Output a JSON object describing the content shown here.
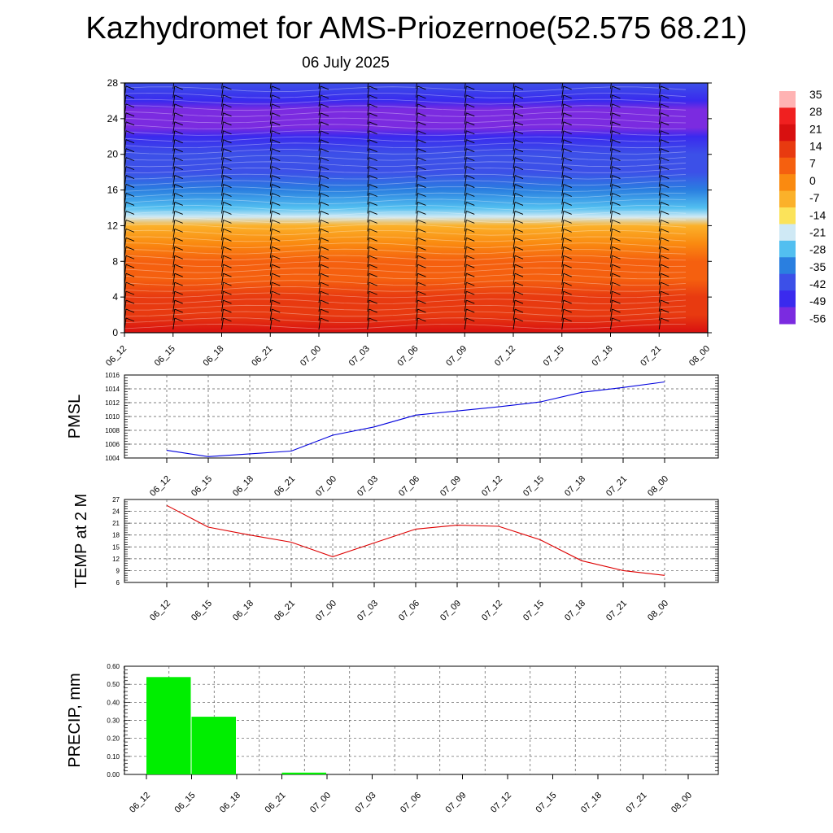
{
  "title": "Kazhydromet for AMS-Priozernoe(52.575 68.21)",
  "subtitle": "06 July 2025",
  "time_ticks": [
    "06_12",
    "06_15",
    "06_18",
    "06_21",
    "07_00",
    "07_03",
    "07_06",
    "07_09",
    "07_12",
    "07_15",
    "07_18",
    "07_21",
    "08_00"
  ],
  "chart_data": [
    {
      "type": "heatmap",
      "title": "",
      "xlabel": "",
      "ylabel": "",
      "x": [
        "06_12",
        "06_15",
        "06_18",
        "06_21",
        "07_00",
        "07_03",
        "07_06",
        "07_09",
        "07_12",
        "07_15",
        "07_18",
        "07_21",
        "08_00"
      ],
      "yticks": [
        0,
        4,
        8,
        12,
        16,
        20,
        24,
        28
      ],
      "ylim": [
        0,
        28
      ],
      "colorbar_labels": [
        35,
        28,
        21,
        14,
        7,
        0,
        -7,
        -14,
        -21,
        -28,
        -35,
        -42,
        -49,
        -56
      ],
      "colorbar_colors": [
        "#ffb3b3",
        "#f02020",
        "#d81010",
        "#e83a10",
        "#f5600f",
        "#fa8a10",
        "#fbb12a",
        "#fbe35a",
        "#cfe9f5",
        "#52bff0",
        "#2a7fe0",
        "#3c50e8",
        "#3a2aee",
        "#7b2be0"
      ],
      "profile_levels": [
        0,
        2,
        4,
        6,
        8,
        10,
        12,
        13,
        14,
        16,
        18,
        20,
        22,
        23,
        24,
        25,
        26,
        28
      ],
      "profile_values": [
        22,
        20,
        16,
        11,
        7,
        3,
        -6,
        -15,
        -22,
        -30,
        -37,
        -42,
        -48,
        -52,
        -54,
        -50,
        -46,
        -40
      ],
      "wind_barbs": true,
      "grid": false
    },
    {
      "type": "line",
      "title": "",
      "xlabel": "",
      "ylabel": "PMSL",
      "categories": [
        "06_12",
        "06_15",
        "06_18",
        "06_21",
        "07_00",
        "07_03",
        "07_06",
        "07_09",
        "07_12",
        "07_15",
        "07_18",
        "07_21",
        "08_00"
      ],
      "series": [
        {
          "values": [
            1005.1,
            1004.2,
            1004.6,
            1005.0,
            1007.3,
            1008.5,
            1010.2,
            1010.8,
            1011.4,
            1012.1,
            1013.5,
            1014.2,
            1015.0
          ],
          "color": "#0000dd"
        }
      ],
      "ylim": [
        1004,
        1016
      ],
      "yticks": [
        1004,
        1006,
        1008,
        1010,
        1012,
        1014,
        1016
      ],
      "grid": true
    },
    {
      "type": "line",
      "title": "",
      "xlabel": "",
      "ylabel": "TEMP at 2 M",
      "categories": [
        "06_12",
        "06_15",
        "06_18",
        "06_21",
        "07_00",
        "07_03",
        "07_06",
        "07_09",
        "07_12",
        "07_15",
        "07_18",
        "07_21",
        "08_00"
      ],
      "series": [
        {
          "values": [
            25.5,
            20.0,
            18.0,
            16.2,
            12.5,
            16.0,
            19.5,
            20.5,
            20.2,
            16.8,
            11.5,
            9.0,
            7.8
          ],
          "color": "#dd0000"
        }
      ],
      "ylim": [
        6,
        27
      ],
      "yticks": [
        6,
        9,
        12,
        15,
        18,
        21,
        24,
        27
      ],
      "grid": true
    },
    {
      "type": "bar",
      "title": "",
      "xlabel": "",
      "ylabel": "PRECIP, mm",
      "categories": [
        "06_12",
        "06_15",
        "06_18",
        "06_21",
        "07_00",
        "07_03",
        "07_06",
        "07_09",
        "07_12",
        "07_15",
        "07_18",
        "07_21",
        "08_00"
      ],
      "values": [
        0,
        0.54,
        0.32,
        0,
        0.01,
        0,
        0,
        0,
        0,
        0,
        0,
        0,
        0
      ],
      "color": "#00ee00",
      "ylim": [
        0,
        0.6
      ],
      "yticks": [
        "0.00",
        "0.10",
        "0.20",
        "0.30",
        "0.40",
        "0.50",
        "0.60"
      ],
      "grid": true
    }
  ]
}
